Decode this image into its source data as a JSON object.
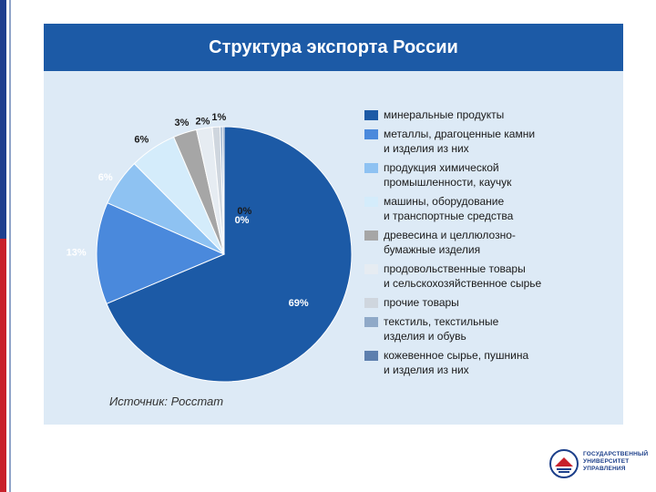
{
  "slide": {
    "logo_text": "ГОСУДАРСТВЕННЫЙ\nУНИВЕРСИТЕТ\nУПРАВЛЕНИЯ"
  },
  "chart_data": {
    "type": "pie",
    "title": "Структура экспорта России",
    "source": "Источник: Росстат",
    "legend_position": "right",
    "slices": [
      {
        "name": "минеральные продукты",
        "value": 69,
        "label": "69%",
        "color": "#1c5aa6"
      },
      {
        "name": "металлы, драгоценные камни\nи изделия из них",
        "value": 13,
        "label": "13%",
        "color": "#4a89dc"
      },
      {
        "name": "продукция химической\nпромышленности, каучук",
        "value": 6,
        "label": "6%",
        "color": "#8ec2f2"
      },
      {
        "name": "машины, оборудование\nи транспортные средства",
        "value": 6,
        "label": "6%",
        "color": "#d4ecfb"
      },
      {
        "name": "древесина и целлюлозно-\nбумажные изделия",
        "value": 3,
        "label": "3%",
        "color": "#a6a6a6"
      },
      {
        "name": "продовольственные товары\nи сельскохозяйственное сырье",
        "value": 2,
        "label": "2%",
        "color": "#e6ecf2"
      },
      {
        "name": "прочие товары",
        "value": 1,
        "label": "1%",
        "color": "#cfd6de"
      },
      {
        "name": "текстиль, текстильные\nизделия  и обувь",
        "value": 0.3,
        "label": "0%",
        "color": "#8fa9c8"
      },
      {
        "name": "кожевенное сырье, пушнина\nи изделия из них",
        "value": 0.2,
        "label": "0%",
        "color": "#5d7fae"
      }
    ]
  }
}
